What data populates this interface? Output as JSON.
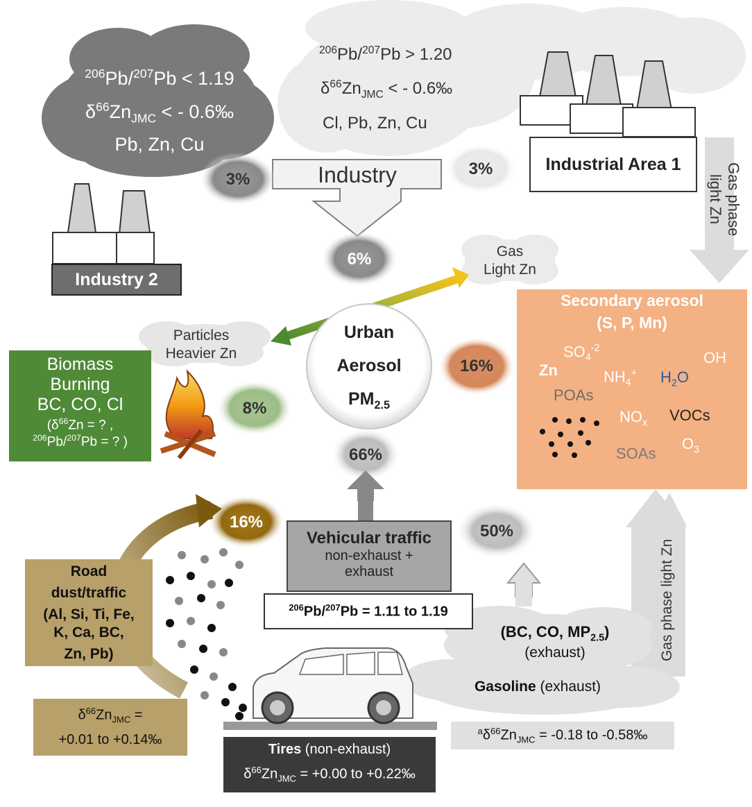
{
  "industry2_cloud": {
    "pb_ratio_prefix": "206",
    "pb_ratio_mid": "Pb/",
    "pb_ratio_sup2": "207",
    "pb_ratio_suffix": "Pb < 1.19",
    "zn_prefix": "δ",
    "zn_sup": "66",
    "zn_main": "Zn",
    "zn_sub": "JMC",
    "zn_suffix": " < - 0.6‰",
    "elements": "Pb, Zn, Cu"
  },
  "industry1_cloud": {
    "pb_ratio_prefix": "206",
    "pb_ratio_mid": "Pb/",
    "pb_ratio_sup2": "207",
    "pb_ratio_suffix": "Pb > 1.20",
    "zn_prefix": "δ",
    "zn_sup": "66",
    "zn_main": "Zn",
    "zn_sub": "JMC",
    "zn_suffix": " < - 0.6‰",
    "elements": "Cl, Pb, Zn, Cu"
  },
  "industry_arrow_label": "Industry",
  "industrial_area_1_label": "Industrial Area 1",
  "industry_2_label": "Industry 2",
  "gas_phase_top": [
    "Gas phase",
    "light Zn"
  ],
  "gas_light_cloud": [
    "Gas",
    "Light Zn"
  ],
  "particles_cloud": [
    "Particles",
    "Heavier Zn"
  ],
  "urban_aerosol": [
    "Urban",
    "Aerosol",
    "PM",
    "2.5"
  ],
  "biomass": {
    "lines": [
      "Biomass",
      "Burning",
      "BC, CO, Cl"
    ],
    "zn_line_prefix": "(δ",
    "zn_sup": "66",
    "zn_line_suffix": "Zn = ? ,",
    "pb_sup1": "206",
    "pb_mid": "Pb/",
    "pb_sup2": "207",
    "pb_suffix": "Pb = ? )"
  },
  "secondary_aerosol": {
    "title": "Secondary aerosol",
    "subtitle": "(S, P, Mn)",
    "so4": "SO",
    "so4_sub": "4",
    "so4_sup": "-2",
    "oh": "OH",
    "zn": "Zn",
    "nh4": "NH",
    "nh4_sub": "4",
    "nh4_sup": "+",
    "h2o": "H",
    "h2o_sub": "2",
    "h2o_end": "O",
    "poas": "POAs",
    "nox": "NO",
    "nox_sub": "x",
    "vocs": "VOCs",
    "soas": "SOAs",
    "o3": "O",
    "o3_sub": "3"
  },
  "percentages": {
    "industry2": "3%",
    "industry1": "3%",
    "industry_total": "6%",
    "biomass": "8%",
    "secondary": "16%",
    "vehicular": "66%",
    "road_dust": "16%",
    "exhaust": "50%"
  },
  "vehicular": {
    "title": "Vehicular traffic",
    "sub1": "non-exhaust +",
    "sub2": "exhaust",
    "pb_sup1": "206",
    "pb_mid": "Pb/",
    "pb_sup2": "207",
    "pb_suffix": "Pb = 1.11 to 1.19"
  },
  "road_dust": {
    "lines": [
      "Road",
      "dust/traffic",
      "(Al, Si, Ti, Fe,",
      "K, Ca, BC,",
      "Zn, Pb)"
    ],
    "zn_prefix": "δ",
    "zn_sup": "66",
    "zn_main": "Zn",
    "zn_sub": "JMC",
    "zn_suffix": " =",
    "zn_range": "+0.01 to +0.14‰"
  },
  "tires": {
    "title": "Tires",
    "title_suffix": " (non-exhaust)",
    "zn_prefix": "δ",
    "zn_sup": "66",
    "zn_main": "Zn",
    "zn_sub": "JMC",
    "zn_suffix": " = +0.00 to +0.22‰"
  },
  "exhaust_cloud": {
    "line1_prefix": "(BC, CO, MP",
    "line1_sub": "2.5",
    "line1_suffix": ")",
    "line2": "(exhaust)",
    "gasoline": "Gasoline",
    "gasoline_suffix": " (exhaust)"
  },
  "gasoline_zn": {
    "sup_a": "a",
    "prefix": "δ",
    "sup": "66",
    "main": "Zn",
    "sub": "JMC",
    "suffix": " = -0.18 to -0.58‰"
  },
  "gas_phase_bottom": "Gas phase light Zn",
  "colors": {
    "biomass_green": "#4f8a37",
    "secondary_orange": "#f4b183",
    "road_tan": "#b8a06a",
    "tires_dark": "#3a3a3a",
    "industry_grey": "#6e6e6e"
  }
}
